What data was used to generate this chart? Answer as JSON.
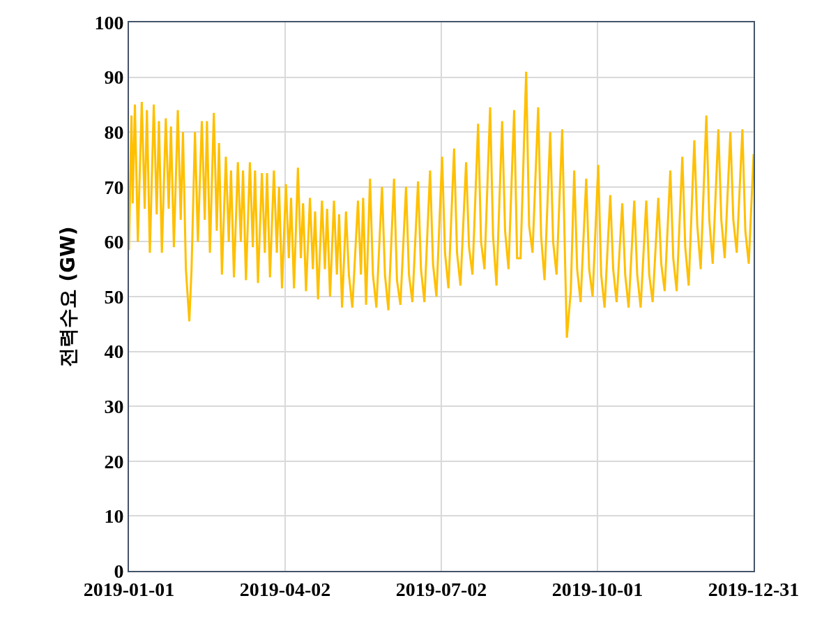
{
  "chart_data": {
    "type": "line",
    "ylabel": "전력수요 (GW)",
    "xlim": [
      "2019-01-01",
      "2019-12-31"
    ],
    "xticks": [
      "2019-01-01",
      "2019-04-02",
      "2019-07-02",
      "2019-10-01",
      "2019-12-31"
    ],
    "ylim": [
      0,
      100
    ],
    "yticks": [
      0,
      10,
      20,
      30,
      40,
      50,
      60,
      70,
      80,
      90,
      100
    ],
    "grid": true,
    "marker": "none",
    "line_style": "solid",
    "x": [
      "2019-01-01T00:00",
      "2019-01-02T11:00",
      "2019-01-03T04:00",
      "2019-01-04T11:00",
      "2019-01-06T04:00",
      "2019-01-08T11:00",
      "2019-01-10T04:00",
      "2019-01-11T11:00",
      "2019-01-13T04:00",
      "2019-01-15T11:00",
      "2019-01-17T04:00",
      "2019-01-18T11:00",
      "2019-01-20T04:00",
      "2019-01-22T11:00",
      "2019-01-24T04:00",
      "2019-01-25T11:00",
      "2019-01-27T04:00",
      "2019-01-29T11:00",
      "2019-01-31T04:00",
      "2019-02-01T11:00",
      "2019-02-03T04:00",
      "2019-02-05T04:00",
      "2019-02-06T11:00",
      "2019-02-08T11:00",
      "2019-02-10T04:00",
      "2019-02-12T11:00",
      "2019-02-14T04:00",
      "2019-02-15T11:00",
      "2019-02-17T04:00",
      "2019-02-19T11:00",
      "2019-02-21T04:00",
      "2019-02-22T11:00",
      "2019-02-24T04:00",
      "2019-02-26T11:00",
      "2019-02-28T04:00",
      "2019-03-01T11:00",
      "2019-03-03T04:00",
      "2019-03-05T11:00",
      "2019-03-07T04:00",
      "2019-03-08T11:00",
      "2019-03-10T04:00",
      "2019-03-12T11:00",
      "2019-03-14T04:00",
      "2019-03-15T11:00",
      "2019-03-17T04:00",
      "2019-03-19T11:00",
      "2019-03-21T04:00",
      "2019-03-22T11:00",
      "2019-03-24T04:00",
      "2019-03-26T11:00",
      "2019-03-28T04:00",
      "2019-03-29T11:00",
      "2019-03-31T04:00",
      "2019-04-02T11:00",
      "2019-04-04T04:00",
      "2019-04-05T11:00",
      "2019-04-07T04:00",
      "2019-04-09T11:00",
      "2019-04-11T04:00",
      "2019-04-12T11:00",
      "2019-04-14T04:00",
      "2019-04-16T11:00",
      "2019-04-18T04:00",
      "2019-04-19T11:00",
      "2019-04-21T04:00",
      "2019-04-23T11:00",
      "2019-04-25T04:00",
      "2019-04-26T11:00",
      "2019-04-28T04:00",
      "2019-04-30T11:00",
      "2019-05-02T04:00",
      "2019-05-03T11:00",
      "2019-05-05T04:00",
      "2019-05-07T11:00",
      "2019-05-09T04:00",
      "2019-05-11T04:00",
      "2019-05-14T11:00",
      "2019-05-16T04:00",
      "2019-05-17T11:00",
      "2019-05-19T04:00",
      "2019-05-21T11:00",
      "2019-05-23T04:00",
      "2019-05-25T04:00",
      "2019-05-28T11:00",
      "2019-05-30T04:00",
      "2019-06-01T04:00",
      "2019-06-04T11:00",
      "2019-06-06T04:00",
      "2019-06-08T04:00",
      "2019-06-11T11:00",
      "2019-06-13T04:00",
      "2019-06-15T04:00",
      "2019-06-18T11:00",
      "2019-06-20T04:00",
      "2019-06-22T04:00",
      "2019-06-25T11:00",
      "2019-06-27T04:00",
      "2019-06-29T04:00",
      "2019-07-02T11:00",
      "2019-07-04T04:00",
      "2019-07-06T04:00",
      "2019-07-09T11:00",
      "2019-07-11T04:00",
      "2019-07-13T04:00",
      "2019-07-16T11:00",
      "2019-07-18T04:00",
      "2019-07-20T04:00",
      "2019-07-23T11:00",
      "2019-07-25T04:00",
      "2019-07-27T04:00",
      "2019-07-30T11:00",
      "2019-08-01T04:00",
      "2019-08-03T04:00",
      "2019-08-06T11:00",
      "2019-08-08T04:00",
      "2019-08-10T04:00",
      "2019-08-13T11:00",
      "2019-08-15T04:00",
      "2019-08-17T04:00",
      "2019-08-20T11:00",
      "2019-08-22T04:00",
      "2019-08-24T04:00",
      "2019-08-27T11:00",
      "2019-08-29T04:00",
      "2019-08-31T04:00",
      "2019-09-03T11:00",
      "2019-09-05T04:00",
      "2019-09-07T04:00",
      "2019-09-10T11:00",
      "2019-09-12T04:00",
      "2019-09-13T04:00",
      "2019-09-15T11:00",
      "2019-09-17T11:00",
      "2019-09-19T04:00",
      "2019-09-21T04:00",
      "2019-09-24T11:00",
      "2019-09-26T04:00",
      "2019-09-28T04:00",
      "2019-10-01T11:00",
      "2019-10-03T04:00",
      "2019-10-05T04:00",
      "2019-10-08T11:00",
      "2019-10-10T04:00",
      "2019-10-12T04:00",
      "2019-10-15T11:00",
      "2019-10-17T04:00",
      "2019-10-19T04:00",
      "2019-10-22T11:00",
      "2019-10-24T04:00",
      "2019-10-26T04:00",
      "2019-10-29T11:00",
      "2019-10-31T04:00",
      "2019-11-02T04:00",
      "2019-11-05T11:00",
      "2019-11-07T04:00",
      "2019-11-09T04:00",
      "2019-11-12T11:00",
      "2019-11-14T04:00",
      "2019-11-16T04:00",
      "2019-11-19T11:00",
      "2019-11-21T04:00",
      "2019-11-23T04:00",
      "2019-11-26T11:00",
      "2019-11-28T04:00",
      "2019-11-30T04:00",
      "2019-12-03T11:00",
      "2019-12-05T04:00",
      "2019-12-07T04:00",
      "2019-12-10T11:00",
      "2019-12-12T04:00",
      "2019-12-14T04:00",
      "2019-12-17T11:00",
      "2019-12-19T04:00",
      "2019-12-21T04:00",
      "2019-12-24T11:00",
      "2019-12-26T04:00",
      "2019-12-28T04:00",
      "2019-12-31T00:00"
    ],
    "series": [
      {
        "color": "#ffc000",
        "values": [
          58.5,
          83,
          67,
          85,
          60,
          85.5,
          66,
          84,
          58,
          85,
          65,
          82,
          58,
          82.5,
          66,
          81,
          59,
          84,
          64,
          80,
          55,
          45.5,
          55,
          80,
          60,
          82,
          64,
          82,
          58,
          83.5,
          62,
          78,
          54,
          75.5,
          60,
          73,
          53.5,
          74.5,
          60,
          73,
          53,
          74.5,
          59,
          73,
          52.5,
          72.5,
          58,
          72.5,
          53.5,
          73,
          58,
          70,
          51.5,
          70.5,
          57,
          68,
          51.5,
          73.5,
          57,
          67,
          51,
          68,
          55,
          65.5,
          49.5,
          67.5,
          55,
          66,
          50,
          67.5,
          54,
          65,
          48,
          65.5,
          54,
          48,
          67.5,
          54,
          68,
          48.5,
          71.5,
          54,
          48,
          70,
          54,
          47.5,
          71.5,
          53,
          48.5,
          70,
          54,
          49,
          71,
          55,
          49,
          73,
          56,
          50,
          75.5,
          58,
          51.5,
          77,
          58,
          52,
          74.5,
          59,
          54,
          81.5,
          60,
          55,
          84.5,
          61,
          52,
          82,
          62,
          55,
          84,
          57,
          57,
          91,
          63,
          58,
          84.5,
          61,
          53,
          80,
          60,
          54,
          80.5,
          56,
          42.5,
          51,
          73,
          55,
          49,
          71.5,
          55,
          50,
          74,
          54,
          48,
          68.5,
          55,
          49,
          67,
          54,
          48,
          67.5,
          54,
          48,
          67.5,
          54,
          49,
          68,
          56,
          51,
          73,
          57,
          51,
          75.5,
          59,
          52,
          78.5,
          63,
          55,
          83,
          64,
          56,
          80.5,
          64,
          57,
          80,
          64,
          58,
          80.5,
          62,
          56,
          76
        ]
      }
    ]
  }
}
